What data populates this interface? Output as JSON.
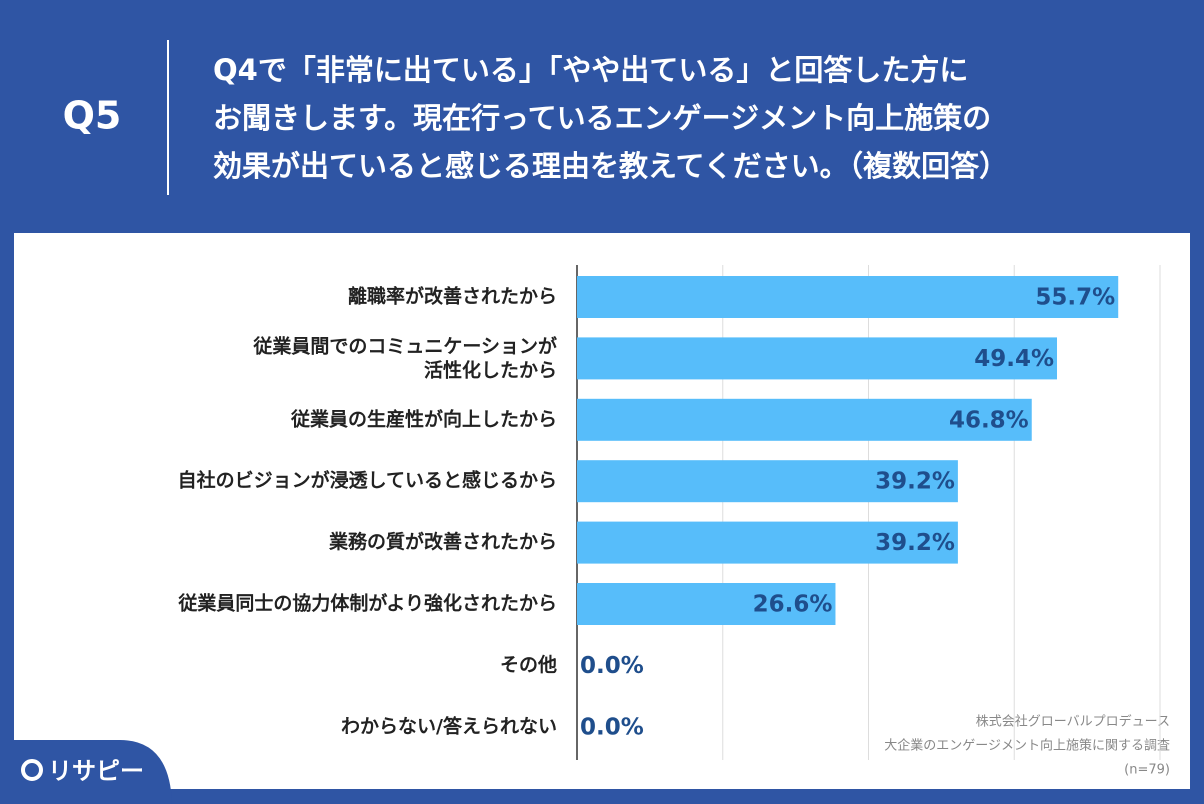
{
  "header": {
    "question": "Q5",
    "title_lines": [
      "Q4で「非常に出ている」「やや出ている」と回答した方に",
      "お聞きします。現在行っているエンゲージメント向上施策の",
      "効果が出ていると感じる理由を教えてください。（複数回答）"
    ]
  },
  "chart_data": {
    "type": "hbar",
    "categories": [
      "離職率が改善されたから",
      "従業員間でのコミュニケーションが\n活性化したから",
      "従業員の生産性が向上したから",
      "自社のビジョンが浸透していると感じるから",
      "業務の質が改善されたから",
      "従業員同士の協力体制がより強化されたから",
      "その他",
      "わからない/答えられない"
    ],
    "values": [
      55.7,
      49.4,
      46.8,
      39.2,
      39.2,
      26.6,
      0.0,
      0.0
    ],
    "value_labels": [
      "55.7%",
      "49.4%",
      "46.8%",
      "39.2%",
      "39.2%",
      "26.6%",
      "0.0%",
      "0.0%"
    ],
    "color": "#57bdfa",
    "xlim": [
      0,
      60
    ],
    "xticks": [
      0,
      15,
      30,
      45,
      60
    ],
    "grid": true
  },
  "source_lines": [
    "株式会社グローバルプロデュース",
    "大企業のエンゲージメント向上施策に関する調査",
    "(n=79)"
  ],
  "logo": "リサピー"
}
